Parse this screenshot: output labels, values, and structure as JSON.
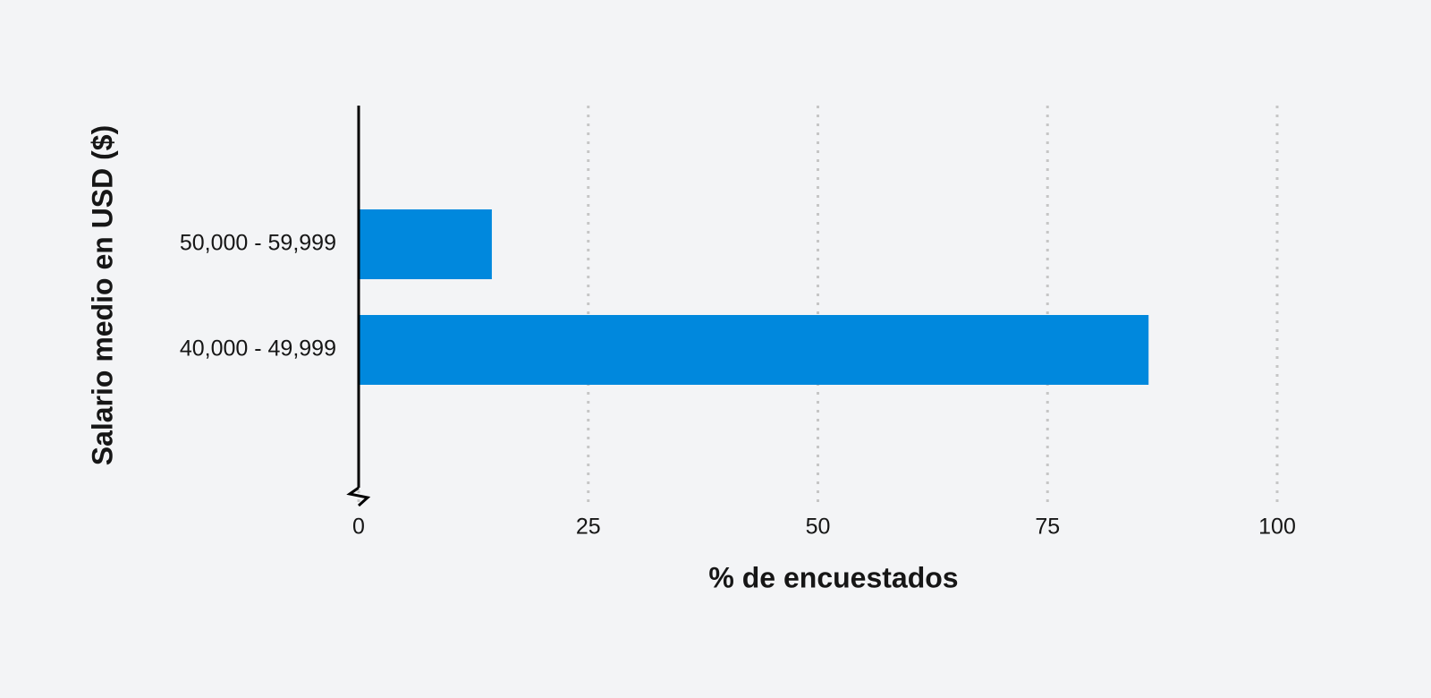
{
  "chart_data": {
    "type": "bar",
    "orientation": "horizontal",
    "categories": [
      "50,000 - 59,999",
      "40,000 - 49,999"
    ],
    "values": [
      14.5,
      86
    ],
    "color": "#0088dd",
    "xlim": [
      0,
      100
    ],
    "xticks": [
      0,
      25,
      50,
      75,
      100
    ],
    "grid": true,
    "x_label": "% de encuestados",
    "y_label": "Salario medio en USD ($)"
  }
}
